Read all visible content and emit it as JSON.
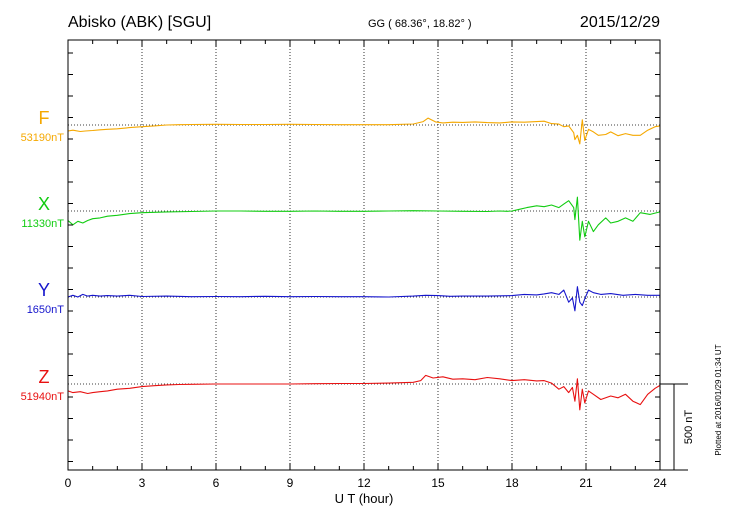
{
  "header": {
    "station": "Abisko (ABK)  [SGU]",
    "coords": "GG ( 68.36°,  18.82° )",
    "date": "2015/12/29"
  },
  "footer": {
    "plotted": "Plotted at 2016/01/29 01:34 UT"
  },
  "chart_data": {
    "type": "line",
    "xlabel": "U T (hour)",
    "xlim": [
      0,
      24
    ],
    "xticks": [
      "0",
      "3",
      "6",
      "9",
      "12",
      "15",
      "18",
      "21",
      "24"
    ],
    "scale_label": "500 nT",
    "grid": true,
    "series": [
      {
        "name": "F",
        "baseline_label": "53190nT",
        "color": "#f5a800",
        "x": [
          0,
          0.2,
          0.5,
          0.7,
          1,
          1.3,
          1.6,
          2,
          2.5,
          3,
          3.5,
          4,
          4.5,
          5,
          6,
          7,
          8,
          9,
          10,
          11,
          12,
          13,
          14,
          14.4,
          14.6,
          14.9,
          15.2,
          15.6,
          16,
          16.5,
          17,
          17.5,
          18,
          18.5,
          19,
          19.3,
          19.6,
          19.9,
          20.1,
          20.3,
          20.5,
          20.55,
          20.65,
          20.75,
          20.85,
          20.95,
          21.1,
          21.3,
          21.5,
          21.8,
          22,
          22.3,
          22.6,
          22.9,
          23.2,
          23.5,
          23.8,
          24
        ],
        "y": [
          -35,
          -30,
          -38,
          -35,
          -32,
          -28,
          -25,
          -22,
          -15,
          -10,
          -5,
          0,
          2,
          3,
          4,
          3,
          3,
          4,
          3,
          2,
          2,
          2,
          6,
          20,
          40,
          18,
          12,
          16,
          15,
          18,
          14,
          12,
          18,
          16,
          20,
          22,
          8,
          5,
          -10,
          -5,
          -45,
          -85,
          -60,
          -110,
          30,
          -90,
          -25,
          -40,
          -60,
          -55,
          -40,
          -62,
          -50,
          -60,
          -60,
          -30,
          -10,
          -5
        ]
      },
      {
        "name": "X",
        "baseline_label": "11330nT",
        "color": "#11cc11",
        "x": [
          0,
          0.2,
          0.4,
          0.6,
          0.8,
          1,
          1.3,
          1.6,
          2,
          2.5,
          3,
          4,
          5,
          6,
          7,
          8,
          9,
          10,
          11,
          12,
          13,
          14,
          15,
          16,
          17,
          17.5,
          17.8,
          18,
          18.3,
          18.6,
          19,
          19.3,
          19.6,
          19.9,
          20.1,
          20.3,
          20.5,
          20.55,
          20.65,
          20.75,
          20.85,
          20.95,
          21.1,
          21.3,
          21.5,
          21.8,
          22,
          22.3,
          22.6,
          22.9,
          23.2,
          23.6,
          24
        ],
        "y": [
          -55,
          -80,
          -60,
          -70,
          -55,
          -45,
          -40,
          -30,
          -25,
          -15,
          -10,
          -5,
          -3,
          0,
          0,
          -2,
          -2,
          0,
          -2,
          -2,
          0,
          2,
          0,
          -2,
          -3,
          0,
          -2,
          0,
          10,
          20,
          30,
          25,
          35,
          20,
          40,
          60,
          20,
          -50,
          80,
          -170,
          -60,
          -150,
          -60,
          -120,
          -80,
          -40,
          -70,
          -60,
          -40,
          -60,
          -10,
          -20,
          -5
        ]
      },
      {
        "name": "Y",
        "baseline_label": "1650nT",
        "color": "#1515cc",
        "x": [
          0,
          0.2,
          0.4,
          0.6,
          0.8,
          1,
          1.3,
          1.6,
          2,
          2.5,
          3,
          4,
          5,
          6,
          7,
          8,
          9,
          10,
          11,
          12,
          13,
          14,
          14.5,
          15,
          15.5,
          16,
          17,
          18,
          18.5,
          19,
          19.3,
          19.6,
          19.9,
          20.1,
          20.3,
          20.45,
          20.55,
          20.65,
          20.75,
          20.85,
          20.95,
          21.1,
          21.3,
          21.6,
          22,
          22.5,
          23,
          23.5,
          24
        ],
        "y": [
          0,
          10,
          0,
          15,
          5,
          10,
          5,
          8,
          5,
          10,
          3,
          5,
          2,
          3,
          2,
          4,
          2,
          3,
          2,
          2,
          0,
          5,
          10,
          8,
          4,
          5,
          5,
          8,
          15,
          12,
          18,
          25,
          15,
          40,
          -30,
          -5,
          -80,
          60,
          -30,
          -50,
          -10,
          40,
          25,
          15,
          20,
          10,
          15,
          10,
          10
        ]
      },
      {
        "name": "Z",
        "baseline_label": "51940nT",
        "color": "#e81010",
        "x": [
          0,
          0.2,
          0.5,
          0.8,
          1,
          1.3,
          1.6,
          2,
          2.5,
          3,
          3.5,
          4,
          4.5,
          5,
          6,
          7,
          8,
          9,
          10,
          11,
          12,
          13,
          14,
          14.3,
          14.5,
          14.8,
          15.2,
          15.6,
          16,
          16.5,
          17,
          17.5,
          18,
          18.5,
          19,
          19.3,
          19.6,
          19.9,
          20.1,
          20.3,
          20.45,
          20.55,
          20.65,
          20.75,
          20.85,
          20.95,
          21.1,
          21.3,
          21.6,
          22,
          22.3,
          22.6,
          22.9,
          23.2,
          23.5,
          23.8,
          24
        ],
        "y": [
          -40,
          -50,
          -45,
          -55,
          -50,
          -45,
          -40,
          -30,
          -25,
          -15,
          -10,
          -5,
          -3,
          -2,
          0,
          0,
          0,
          0,
          2,
          3,
          3,
          5,
          10,
          20,
          50,
          35,
          42,
          28,
          30,
          25,
          38,
          30,
          20,
          25,
          18,
          20,
          5,
          -30,
          -15,
          -50,
          -20,
          -100,
          30,
          -150,
          -30,
          -110,
          -40,
          -60,
          -90,
          -70,
          -80,
          -60,
          -100,
          -120,
          -60,
          -25,
          -8
        ]
      }
    ]
  }
}
